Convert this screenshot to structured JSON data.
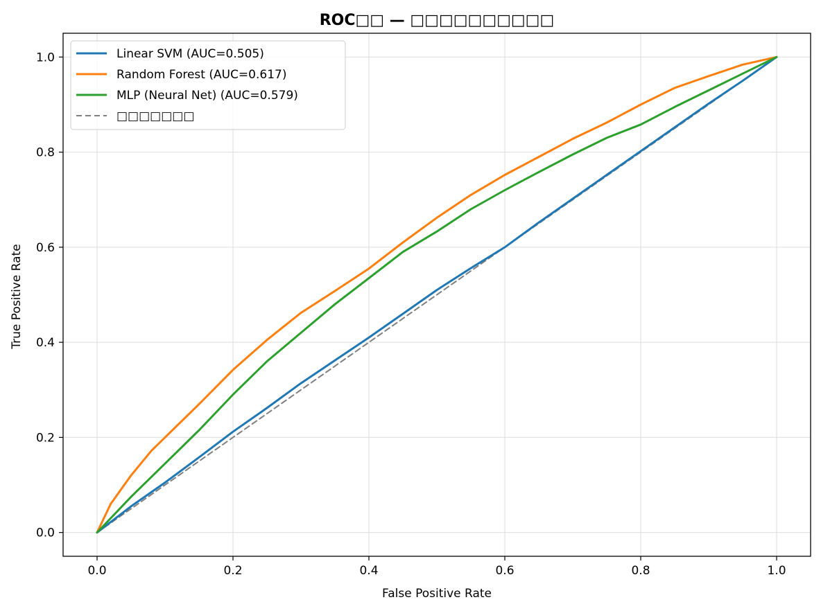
{
  "chart_data": {
    "type": "line",
    "title": "ROC□□ — □□□□□□□□□□",
    "xlabel": "False Positive Rate",
    "ylabel": "True Positive Rate",
    "xlim": [
      -0.05,
      1.05
    ],
    "ylim": [
      -0.05,
      1.05
    ],
    "xticks": [
      0.0,
      0.2,
      0.4,
      0.6,
      0.8,
      1.0
    ],
    "yticks": [
      0.0,
      0.2,
      0.4,
      0.6,
      0.8,
      1.0
    ],
    "xtick_labels": [
      "0.0",
      "0.2",
      "0.4",
      "0.6",
      "0.8",
      "1.0"
    ],
    "ytick_labels": [
      "0.0",
      "0.2",
      "0.4",
      "0.6",
      "0.8",
      "1.0"
    ],
    "grid": true,
    "legend_position": "top-left",
    "series": [
      {
        "name": "Linear SVM (AUC=0.505)",
        "color": "#1f77b4",
        "style": "solid",
        "x": [
          0.0,
          0.02,
          0.05,
          0.1,
          0.15,
          0.2,
          0.25,
          0.3,
          0.35,
          0.4,
          0.45,
          0.5,
          0.55,
          0.6,
          0.65,
          0.7,
          0.75,
          0.8,
          0.85,
          0.9,
          0.95,
          1.0
        ],
        "y": [
          0.0,
          0.022,
          0.055,
          0.105,
          0.158,
          0.212,
          0.262,
          0.314,
          0.362,
          0.41,
          0.46,
          0.51,
          0.556,
          0.6,
          0.652,
          0.702,
          0.752,
          0.802,
          0.852,
          0.902,
          0.95,
          1.0
        ]
      },
      {
        "name": "Random Forest (AUC=0.617)",
        "color": "#ff7f0e",
        "style": "solid",
        "x": [
          0.0,
          0.02,
          0.05,
          0.08,
          0.1,
          0.15,
          0.2,
          0.25,
          0.3,
          0.35,
          0.4,
          0.45,
          0.5,
          0.55,
          0.6,
          0.65,
          0.7,
          0.75,
          0.8,
          0.85,
          0.9,
          0.95,
          1.0
        ],
        "y": [
          0.0,
          0.06,
          0.12,
          0.172,
          0.2,
          0.27,
          0.342,
          0.405,
          0.462,
          0.508,
          0.555,
          0.61,
          0.662,
          0.71,
          0.752,
          0.79,
          0.828,
          0.862,
          0.9,
          0.935,
          0.96,
          0.984,
          1.0
        ]
      },
      {
        "name": "MLP (Neural Net) (AUC=0.579)",
        "color": "#2ca02c",
        "style": "solid",
        "x": [
          0.0,
          0.02,
          0.05,
          0.1,
          0.15,
          0.2,
          0.25,
          0.3,
          0.35,
          0.4,
          0.45,
          0.5,
          0.55,
          0.6,
          0.65,
          0.7,
          0.75,
          0.8,
          0.85,
          0.9,
          0.95,
          1.0
        ],
        "y": [
          0.0,
          0.03,
          0.075,
          0.145,
          0.215,
          0.29,
          0.36,
          0.42,
          0.48,
          0.535,
          0.59,
          0.633,
          0.68,
          0.72,
          0.758,
          0.795,
          0.83,
          0.858,
          0.895,
          0.93,
          0.965,
          1.0
        ]
      },
      {
        "name": "□□□□□□□",
        "color": "#7f7f7f",
        "style": "dashed",
        "x": [
          0.0,
          1.0
        ],
        "y": [
          0.0,
          1.0
        ]
      }
    ]
  }
}
